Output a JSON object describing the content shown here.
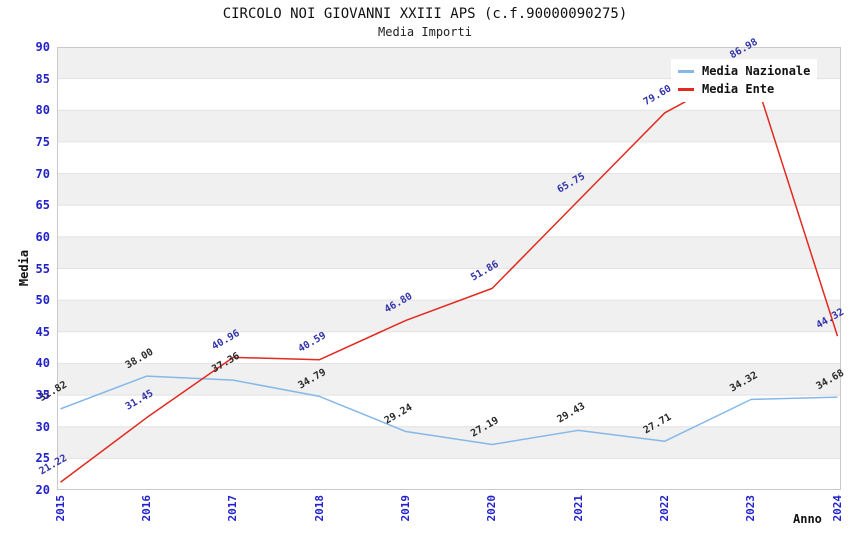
{
  "chart_data": {
    "type": "line",
    "title": "CIRCOLO NOI GIOVANNI XXIII APS (c.f.90000090275)",
    "subtitle": "Media Importi",
    "xlabel": "Anno",
    "ylabel": "Media",
    "categories": [
      "2015",
      "2016",
      "2017",
      "2018",
      "2019",
      "2020",
      "2021",
      "2022",
      "2023",
      "2024"
    ],
    "series": [
      {
        "name": "Media Nazionale",
        "color": "#85b8e8",
        "label_color": "#2b2b2b",
        "values": [
          32.82,
          38.0,
          37.36,
          34.79,
          29.24,
          27.19,
          29.43,
          27.71,
          34.32,
          34.68
        ]
      },
      {
        "name": "Media Ente",
        "color": "#e22a1f",
        "label_color": "#3333aa",
        "values": [
          21.22,
          31.45,
          40.96,
          40.59,
          46.8,
          51.86,
          65.75,
          79.6,
          86.98,
          44.32
        ]
      }
    ],
    "ylim": [
      20,
      90
    ],
    "ytick_step": 5,
    "grid": "horizontal-bands",
    "legend_position": "top-right",
    "band_color": "#f0f0f0",
    "gridline_color": "#e2e2e2",
    "border_color": "#c9c9c9",
    "tick_color": "#2222cc",
    "label_rotation_deg": -30
  }
}
